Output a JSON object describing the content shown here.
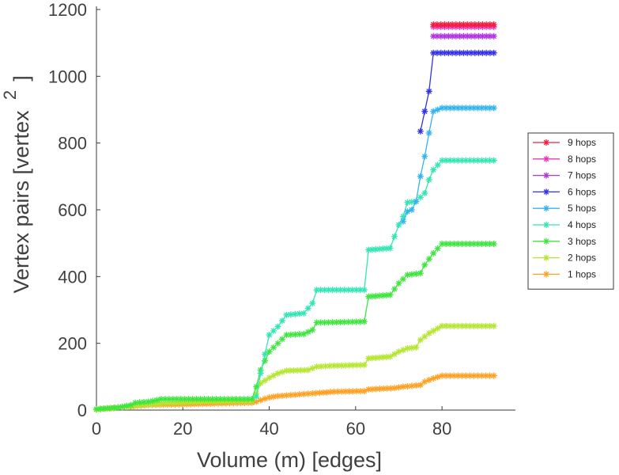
{
  "chart_data": {
    "type": "line",
    "title": "",
    "xlabel": "Volume (m) [edges]",
    "ylabel": "Vertex pairs [vertex",
    "ylabel_superscript": "2",
    "ylabel_close": "]",
    "xlim": [
      0,
      97
    ],
    "ylim": [
      0,
      1200
    ],
    "x_ticks": [
      0,
      20,
      40,
      60,
      80
    ],
    "x_tick_labels": [
      "0",
      "20",
      "40",
      "60",
      "80"
    ],
    "y_ticks": [
      0,
      200,
      400,
      600,
      800,
      1000,
      1200
    ],
    "y_tick_labels": [
      "0",
      "200",
      "400",
      "600",
      "800",
      "1000",
      "1200"
    ],
    "grid": false,
    "legend_position": "right",
    "series": [
      {
        "name": "1 hops",
        "color": "#ffa020",
        "points": [
          [
            0,
            2
          ],
          [
            3,
            5
          ],
          [
            7,
            10
          ],
          [
            12,
            15
          ],
          [
            20,
            17
          ],
          [
            30,
            20
          ],
          [
            36,
            22
          ],
          [
            37,
            25
          ],
          [
            38,
            30
          ],
          [
            40,
            38
          ],
          [
            42,
            42
          ],
          [
            46,
            46
          ],
          [
            50,
            50
          ],
          [
            55,
            55
          ],
          [
            62,
            57
          ],
          [
            63,
            62
          ],
          [
            69,
            66
          ],
          [
            71,
            70
          ],
          [
            75,
            75
          ],
          [
            76,
            85
          ],
          [
            78,
            95
          ],
          [
            80,
            103
          ],
          [
            92,
            103
          ]
        ]
      },
      {
        "name": "2 hops",
        "color": "#b4e632",
        "points": [
          [
            0,
            2
          ],
          [
            3,
            5
          ],
          [
            7,
            10
          ],
          [
            10,
            15
          ],
          [
            15,
            20
          ],
          [
            25,
            25
          ],
          [
            36,
            27
          ],
          [
            37,
            50
          ],
          [
            38,
            80
          ],
          [
            40,
            97
          ],
          [
            42,
            110
          ],
          [
            44,
            118
          ],
          [
            49,
            120
          ],
          [
            51,
            130
          ],
          [
            55,
            133
          ],
          [
            62,
            135
          ],
          [
            63,
            155
          ],
          [
            68,
            160
          ],
          [
            70,
            175
          ],
          [
            72,
            185
          ],
          [
            74,
            188
          ],
          [
            75,
            210
          ],
          [
            77,
            230
          ],
          [
            80,
            252
          ],
          [
            92,
            252
          ]
        ]
      },
      {
        "name": "3 hops",
        "color": "#3ce63c",
        "points": [
          [
            0,
            3
          ],
          [
            5,
            8
          ],
          [
            8,
            15
          ],
          [
            9,
            22
          ],
          [
            12,
            25
          ],
          [
            14,
            30
          ],
          [
            15,
            33
          ],
          [
            25,
            33
          ],
          [
            36,
            33
          ],
          [
            37,
            70
          ],
          [
            38,
            120
          ],
          [
            40,
            175
          ],
          [
            42,
            200
          ],
          [
            44,
            225
          ],
          [
            48,
            228
          ],
          [
            50,
            240
          ],
          [
            51,
            262
          ],
          [
            62,
            265
          ],
          [
            63,
            340
          ],
          [
            68,
            345
          ],
          [
            70,
            380
          ],
          [
            72,
            405
          ],
          [
            75,
            410
          ],
          [
            76,
            435
          ],
          [
            78,
            470
          ],
          [
            80,
            498
          ],
          [
            92,
            498
          ]
        ]
      },
      {
        "name": "4 hops",
        "color": "#32e6b4",
        "points": [
          [
            37,
            40
          ],
          [
            38,
            110
          ],
          [
            40,
            225
          ],
          [
            42,
            250
          ],
          [
            44,
            285
          ],
          [
            48,
            290
          ],
          [
            50,
            320
          ],
          [
            51,
            360
          ],
          [
            62,
            360
          ],
          [
            63,
            480
          ],
          [
            68,
            485
          ],
          [
            70,
            555
          ],
          [
            71,
            580
          ],
          [
            72,
            622
          ],
          [
            74,
            625
          ],
          [
            76,
            650
          ],
          [
            77,
            690
          ],
          [
            78,
            720
          ],
          [
            80,
            748
          ],
          [
            92,
            748
          ]
        ]
      },
      {
        "name": "5 hops",
        "color": "#32b4f0",
        "points": [
          [
            71,
            565
          ],
          [
            72,
            595
          ],
          [
            73,
            600
          ],
          [
            74,
            625
          ],
          [
            75,
            700
          ],
          [
            76,
            760
          ],
          [
            77,
            830
          ],
          [
            78,
            895
          ],
          [
            80,
            905
          ],
          [
            92,
            905
          ]
        ]
      },
      {
        "name": "6 hops",
        "color": "#3232e6",
        "points": [
          [
            75,
            835
          ],
          [
            76,
            895
          ],
          [
            77,
            955
          ],
          [
            78,
            1070
          ],
          [
            92,
            1070
          ]
        ]
      },
      {
        "name": "7 hops",
        "color": "#b432e6",
        "points": [
          [
            78,
            1120
          ],
          [
            92,
            1120
          ]
        ]
      },
      {
        "name": "8 hops",
        "color": "#f032b4",
        "points": [
          [
            78,
            1148
          ],
          [
            92,
            1148
          ]
        ]
      },
      {
        "name": "9 hops",
        "color": "#f01e3c",
        "points": [
          [
            78,
            1155
          ],
          [
            92,
            1155
          ]
        ]
      }
    ]
  }
}
